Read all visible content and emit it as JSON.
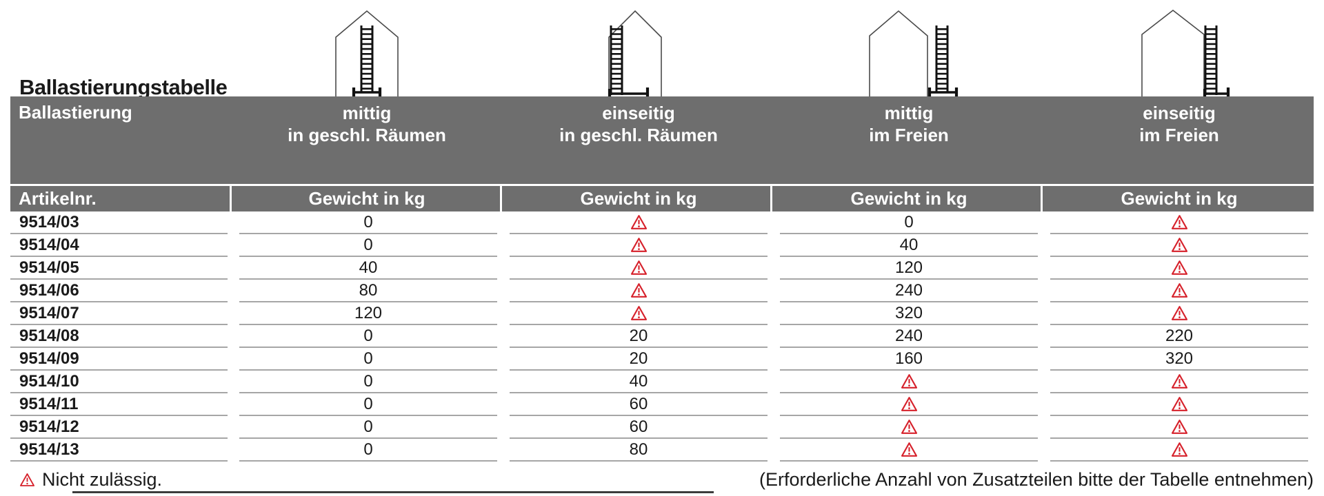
{
  "page": {
    "title": "Ballastierungstabelle",
    "footnote_left": "Nicht zulässig.",
    "footnote_right": "(Erforderliche Anzahl von Zusatzteilen bitte der Tabelle entnehmen)"
  },
  "colors": {
    "header_bg": "#6e6e6e",
    "warning_red": "#d6212b",
    "row_line": "#a6a6a6",
    "text": "#1a1a1a"
  },
  "icons": [
    {
      "name": "ladder-centered-indoor-icon",
      "meaning": "mittig in geschl. Räumen"
    },
    {
      "name": "ladder-one-sided-indoor-icon",
      "meaning": "einseitig in geschl. Räumen"
    },
    {
      "name": "ladder-centered-outdoor-icon",
      "meaning": "mittig im Freien"
    },
    {
      "name": "ladder-one-sided-outdoor-icon",
      "meaning": "einseitig im Freien"
    }
  ],
  "table": {
    "group_header_label": "Ballastierung",
    "row_header_label": "Artikelnr.",
    "columns": [
      {
        "line1": "mittig",
        "line2": "in geschl. Räumen",
        "subheader": "Gewicht in kg"
      },
      {
        "line1": "einseitig",
        "line2": "in geschl. Räumen",
        "subheader": "Gewicht in kg"
      },
      {
        "line1": "mittig",
        "line2": "im Freien",
        "subheader": "Gewicht in kg"
      },
      {
        "line1": "einseitig",
        "line2": "im Freien",
        "subheader": "Gewicht in kg"
      }
    ],
    "warning_symbol_meaning": "Nicht zulässig.",
    "rows": [
      {
        "artikelnr": "9514/03",
        "values": [
          "0",
          "!",
          "0",
          "!"
        ]
      },
      {
        "artikelnr": "9514/04",
        "values": [
          "0",
          "!",
          "40",
          "!"
        ]
      },
      {
        "artikelnr": "9514/05",
        "values": [
          "40",
          "!",
          "120",
          "!"
        ]
      },
      {
        "artikelnr": "9514/06",
        "values": [
          "80",
          "!",
          "240",
          "!"
        ]
      },
      {
        "artikelnr": "9514/07",
        "values": [
          "120",
          "!",
          "320",
          "!"
        ]
      },
      {
        "artikelnr": "9514/08",
        "values": [
          "0",
          "20",
          "240",
          "220"
        ]
      },
      {
        "artikelnr": "9514/09",
        "values": [
          "0",
          "20",
          "160",
          "320"
        ]
      },
      {
        "artikelnr": "9514/10",
        "values": [
          "0",
          "40",
          "!",
          "!"
        ]
      },
      {
        "artikelnr": "9514/11",
        "values": [
          "0",
          "60",
          "!",
          "!"
        ]
      },
      {
        "artikelnr": "9514/12",
        "values": [
          "0",
          "60",
          "!",
          "!"
        ]
      },
      {
        "artikelnr": "9514/13",
        "values": [
          "0",
          "80",
          "!",
          "!"
        ]
      }
    ]
  }
}
